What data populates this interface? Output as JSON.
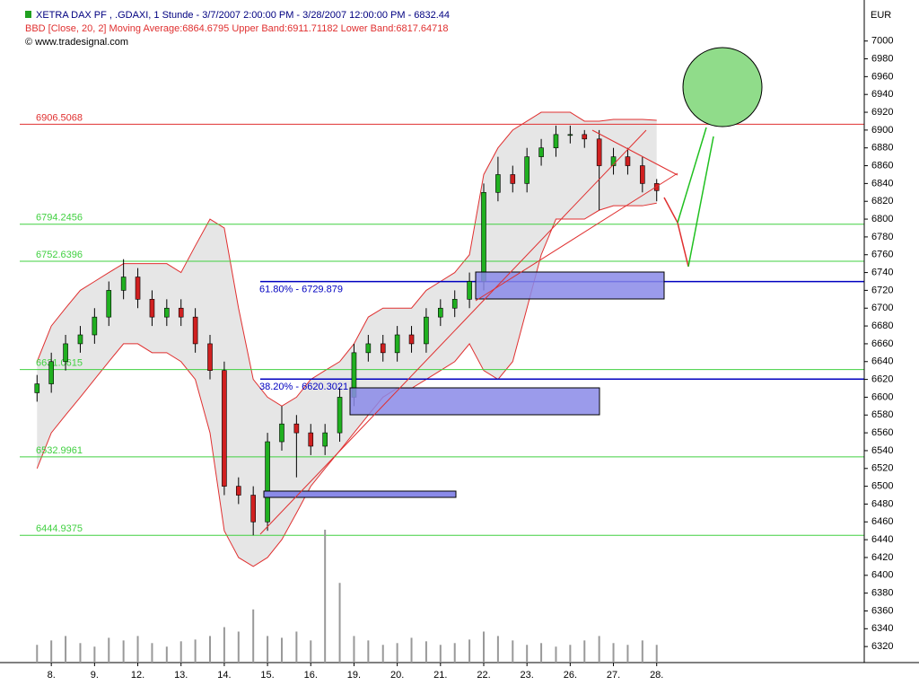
{
  "chart_data": {
    "type": "candlestick",
    "header": "XETRA DAX PF     , .GDAXI, 1 Stunde - 3/7/2007 2:00:00 PM - 3/28/2007 12:00:00 PM - 6832.44",
    "indicator": "BBD [Close, 20, 2] Moving Average:6864.6795 Upper Band:6911.71182 Lower Band:6817.64718",
    "copyright": "© www.tradesignal.com",
    "currency": "EUR",
    "xlim": [
      -0.73,
      18.8
    ],
    "xticks": [
      {
        "value": 0,
        "label": "8."
      },
      {
        "value": 1,
        "label": "9."
      },
      {
        "value": 2,
        "label": "12."
      },
      {
        "value": 3,
        "label": "13."
      },
      {
        "value": 4,
        "label": "14."
      },
      {
        "value": 5,
        "label": "15."
      },
      {
        "value": 6,
        "label": "16."
      },
      {
        "value": 7,
        "label": "19."
      },
      {
        "value": 8,
        "label": "20."
      },
      {
        "value": 9,
        "label": "21."
      },
      {
        "value": 10,
        "label": "22."
      },
      {
        "value": 11,
        "label": "23."
      },
      {
        "value": 12,
        "label": "26."
      },
      {
        "value": 13,
        "label": "27."
      },
      {
        "value": 14,
        "label": "28."
      }
    ],
    "ylim": [
      6302,
      7038
    ],
    "yticks": [
      6320,
      6340,
      6360,
      6380,
      6400,
      6420,
      6440,
      6460,
      6480,
      6500,
      6520,
      6540,
      6560,
      6580,
      6600,
      6620,
      6640,
      6660,
      6680,
      6700,
      6720,
      6740,
      6760,
      6780,
      6800,
      6820,
      6840,
      6860,
      6880,
      6900,
      6920,
      6940,
      6960,
      6980,
      7000
    ],
    "x": [
      -0.33,
      0,
      0.33,
      0.67,
      1,
      1.33,
      1.67,
      2,
      2.33,
      2.67,
      3,
      3.33,
      3.67,
      4,
      4.33,
      4.67,
      5,
      5.33,
      5.67,
      6,
      6.33,
      6.67,
      7,
      7.33,
      7.67,
      8,
      8.33,
      8.67,
      9,
      9.33,
      9.67,
      10,
      10.33,
      10.67,
      11,
      11.33,
      11.67,
      12,
      12.33,
      12.67,
      13,
      13.33,
      13.67,
      14
    ],
    "open": [
      6605,
      6615,
      6640,
      6660,
      6670,
      6690,
      6720,
      6735,
      6710,
      6690,
      6700,
      6690,
      6660,
      6630,
      6500,
      6490,
      6460,
      6550,
      6570,
      6560,
      6545,
      6560,
      6600,
      6650,
      6660,
      6650,
      6670,
      6660,
      6690,
      6700,
      6710,
      6730,
      6830,
      6850,
      6840,
      6870,
      6880,
      6895,
      6895,
      6890,
      6860,
      6870,
      6860,
      6840
    ],
    "high": [
      6625,
      6650,
      6670,
      6680,
      6700,
      6730,
      6755,
      6745,
      6720,
      6710,
      6710,
      6700,
      6670,
      6640,
      6510,
      6500,
      6560,
      6590,
      6580,
      6570,
      6570,
      6610,
      6660,
      6670,
      6670,
      6680,
      6680,
      6700,
      6710,
      6720,
      6740,
      6840,
      6870,
      6860,
      6880,
      6890,
      6905,
      6905,
      6900,
      6900,
      6880,
      6880,
      6870,
      6845
    ],
    "low": [
      6595,
      6605,
      6630,
      6650,
      6660,
      6680,
      6710,
      6700,
      6680,
      6680,
      6680,
      6650,
      6620,
      6490,
      6480,
      6445,
      6450,
      6540,
      6510,
      6535,
      6535,
      6550,
      6590,
      6640,
      6640,
      6640,
      6650,
      6650,
      6680,
      6690,
      6700,
      6720,
      6820,
      6830,
      6830,
      6860,
      6870,
      6885,
      6880,
      6810,
      6850,
      6850,
      6830,
      6820
    ],
    "close": [
      6615,
      6640,
      6660,
      6670,
      6690,
      6720,
      6735,
      6710,
      6690,
      6700,
      6690,
      6660,
      6630,
      6500,
      6490,
      6460,
      6550,
      6570,
      6560,
      6545,
      6560,
      6600,
      6650,
      6660,
      6650,
      6670,
      6660,
      6690,
      6700,
      6710,
      6730,
      6830,
      6850,
      6840,
      6870,
      6880,
      6895,
      6895,
      6890,
      6860,
      6870,
      6860,
      6840,
      6832
    ],
    "upper_band": [
      6640,
      6680,
      6700,
      6720,
      6730,
      6740,
      6750,
      6750,
      6750,
      6750,
      6740,
      6770,
      6800,
      6790,
      6700,
      6620,
      6600,
      6590,
      6600,
      6620,
      6630,
      6640,
      6660,
      6690,
      6700,
      6700,
      6700,
      6720,
      6730,
      6740,
      6760,
      6850,
      6880,
      6900,
      6910,
      6920,
      6920,
      6920,
      6910,
      6910,
      6912,
      6912,
      6912,
      6911
    ],
    "lower_band": [
      6520,
      6560,
      6580,
      6600,
      6620,
      6640,
      6660,
      6660,
      6650,
      6650,
      6640,
      6620,
      6560,
      6450,
      6420,
      6410,
      6420,
      6440,
      6470,
      6500,
      6520,
      6540,
      6560,
      6580,
      6600,
      6610,
      6610,
      6620,
      6630,
      6640,
      6660,
      6630,
      6620,
      6640,
      6700,
      6760,
      6800,
      6800,
      6800,
      6810,
      6815,
      6815,
      6815,
      6818
    ],
    "volume": [
      20,
      25,
      30,
      22,
      18,
      28,
      25,
      30,
      22,
      18,
      24,
      26,
      30,
      40,
      35,
      60,
      30,
      28,
      35,
      25,
      150,
      90,
      30,
      25,
      20,
      22,
      28,
      24,
      20,
      22,
      26,
      35,
      30,
      25,
      20,
      22,
      18,
      20,
      25,
      30,
      22,
      20,
      25,
      20
    ],
    "up_color": "#20b020",
    "down_color": "#d02020",
    "levels": [
      {
        "value": 6906.5068,
        "color": "#e03030"
      },
      {
        "value": 6794.2456,
        "color": "#40d040"
      },
      {
        "value": 6752.6396,
        "color": "#40d040"
      },
      {
        "value": 6631.0615,
        "color": "#40d040"
      },
      {
        "value": 6532.9961,
        "color": "#40d040"
      },
      {
        "value": 6444.9375,
        "color": "#40d040"
      }
    ],
    "fib_levels": [
      {
        "value": 6729.879,
        "label": "61.80% - 6729.879",
        "color": "#0000c0"
      },
      {
        "value": 6620.3021,
        "label": "38.20% - 6620.3021",
        "color": "#0000c0"
      }
    ]
  }
}
